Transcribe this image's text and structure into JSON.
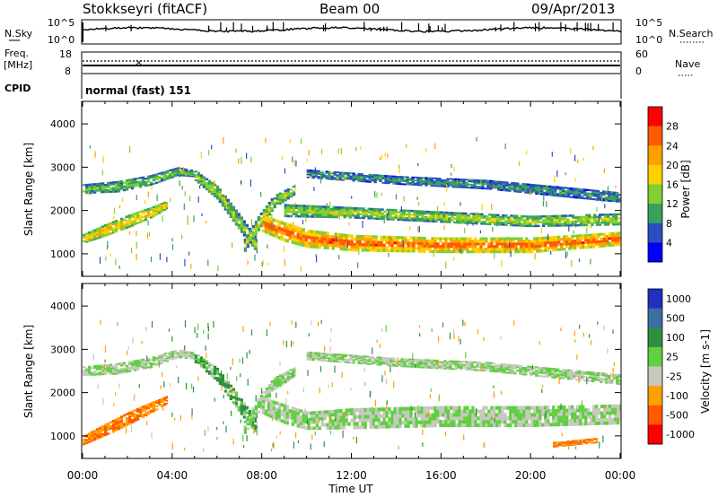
{
  "header": {
    "title": "Stokkseyri (fitACF)",
    "beam": "Beam 00",
    "date": "09/Apr/2013"
  },
  "nsky_panel": {
    "left_label": "N.Sky",
    "right_label": "N.Search",
    "ytick_top": "10^5",
    "ytick_bottom": "10^0"
  },
  "freq_panel": {
    "left_label_line1": "Freq.",
    "left_label_line2": "[MHz]",
    "left_ticks": [
      "18",
      "8"
    ],
    "right_ticks": [
      "60",
      "0"
    ],
    "right_label": "Nave"
  },
  "cpid": {
    "label": "CPID",
    "value": "normal (fast) 151"
  },
  "chart_data": [
    {
      "type": "heatmap",
      "name": "power",
      "ylabel": "Slant Range [km]",
      "xlabel": "Time UT",
      "xlim": [
        0,
        24
      ],
      "ylim": [
        500,
        4500
      ],
      "xticks": [
        "00:00",
        "04:00",
        "08:00",
        "12:00",
        "16:00",
        "20:00",
        "00:00"
      ],
      "yticks": [
        "1000",
        "2000",
        "3000",
        "4000"
      ],
      "colorbar": {
        "label": "Power [dB]",
        "ticks": [
          "28",
          "24",
          "20",
          "16",
          "12",
          "8",
          "4"
        ],
        "colors": [
          "#ff0000",
          "#ff5a00",
          "#ffa000",
          "#ffd000",
          "#7fd030",
          "#3aa060",
          "#2a50c0",
          "#0000ff"
        ]
      },
      "bands": [
        {
          "name": "upper-layer",
          "x": [
            0,
            1.5,
            3.0,
            4.2,
            5.0
          ],
          "y": [
            2500,
            2550,
            2700,
            2900,
            2850
          ],
          "width": [
            220,
            260,
            240,
            200,
            160
          ],
          "level": 12
        },
        {
          "name": "morning-lower",
          "x": [
            0,
            1.0,
            2.0,
            3.0,
            3.8
          ],
          "y": [
            1350,
            1550,
            1750,
            1950,
            2150
          ],
          "width": [
            220,
            280,
            300,
            260,
            180
          ],
          "level": 18
        },
        {
          "name": "ramp-down",
          "x": [
            5.0,
            6.0,
            7.0,
            7.8
          ],
          "y": [
            2800,
            2400,
            1700,
            1150
          ],
          "width": [
            240,
            320,
            380,
            320
          ],
          "level": 14
        },
        {
          "name": "ramp-up",
          "x": [
            7.2,
            7.8,
            8.5,
            9.5
          ],
          "y": [
            1200,
            1700,
            2200,
            2500
          ],
          "width": [
            300,
            340,
            300,
            220
          ],
          "level": 14
        },
        {
          "name": "main-layer",
          "x": [
            8.0,
            9.0,
            10.0,
            12.0,
            16.0,
            20.0,
            24.0
          ],
          "y": [
            1700,
            1500,
            1350,
            1250,
            1200,
            1200,
            1350
          ],
          "width": [
            400,
            450,
            420,
            380,
            360,
            360,
            320
          ],
          "level": 24
        },
        {
          "name": "mid-layer",
          "x": [
            9.0,
            12.0,
            16.0,
            20.0,
            24.0
          ],
          "y": [
            2000,
            1950,
            1850,
            1750,
            1800
          ],
          "width": [
            300,
            260,
            260,
            260,
            280
          ],
          "level": 14
        },
        {
          "name": "high-layer",
          "x": [
            10.0,
            14.0,
            18.0,
            22.0,
            24.0
          ],
          "y": [
            2850,
            2700,
            2600,
            2400,
            2300
          ],
          "width": [
            200,
            200,
            220,
            240,
            240
          ],
          "level": 9
        }
      ]
    },
    {
      "type": "heatmap",
      "name": "velocity",
      "ylabel": "Slant Range [km]",
      "xlabel": "Time UT",
      "xlim": [
        0,
        24
      ],
      "ylim": [
        500,
        4500
      ],
      "xticks": [
        "00:00",
        "04:00",
        "08:00",
        "12:00",
        "16:00",
        "20:00",
        "00:00"
      ],
      "yticks": [
        "1000",
        "2000",
        "3000",
        "4000"
      ],
      "colorbar": {
        "label": "Velocity [m s-1]",
        "ticks": [
          "1000",
          "500",
          "100",
          "25",
          "-25",
          "-100",
          "-500",
          "-1000"
        ],
        "colors": [
          "#2030c0",
          "#3a70a0",
          "#2f8f3f",
          "#5fd040",
          "#c8c8c0",
          "#ffa000",
          "#ff5a00",
          "#ff0000"
        ]
      },
      "bands": [
        {
          "name": "upper-layer",
          "x": [
            0,
            1.5,
            3.0,
            4.2,
            5.0
          ],
          "y": [
            2500,
            2550,
            2700,
            2900,
            2850
          ],
          "width": [
            220,
            260,
            240,
            200,
            160
          ],
          "level": 0
        },
        {
          "name": "morning-lower",
          "x": [
            0,
            1.0,
            2.0,
            3.0,
            3.8
          ],
          "y": [
            900,
            1150,
            1400,
            1650,
            1850
          ],
          "width": [
            220,
            280,
            300,
            260,
            180
          ],
          "level": -300
        },
        {
          "name": "ramp-down",
          "x": [
            5.0,
            6.0,
            7.0,
            7.8
          ],
          "y": [
            2800,
            2400,
            1700,
            1150
          ],
          "width": [
            240,
            320,
            380,
            320
          ],
          "level": 60
        },
        {
          "name": "ramp-up",
          "x": [
            7.2,
            7.8,
            8.5,
            9.5
          ],
          "y": [
            1200,
            1700,
            2200,
            2500
          ],
          "width": [
            300,
            340,
            300,
            220
          ],
          "level": 0
        },
        {
          "name": "main-layer",
          "x": [
            8.0,
            9.0,
            10.0,
            12.0,
            16.0,
            20.0,
            24.0
          ],
          "y": [
            1700,
            1500,
            1350,
            1400,
            1450,
            1450,
            1500
          ],
          "width": [
            400,
            450,
            420,
            480,
            480,
            480,
            460
          ],
          "level": 0
        },
        {
          "name": "high-layer",
          "x": [
            10.0,
            14.0,
            18.0,
            22.0,
            24.0
          ],
          "y": [
            2850,
            2700,
            2600,
            2400,
            2300
          ],
          "width": [
            200,
            200,
            220,
            240,
            240
          ],
          "level": 0
        },
        {
          "name": "late-echo",
          "x": [
            21.0,
            22.0,
            23.0
          ],
          "y": [
            800,
            850,
            900
          ],
          "width": [
            120,
            120,
            120
          ],
          "level": -300
        }
      ]
    }
  ]
}
